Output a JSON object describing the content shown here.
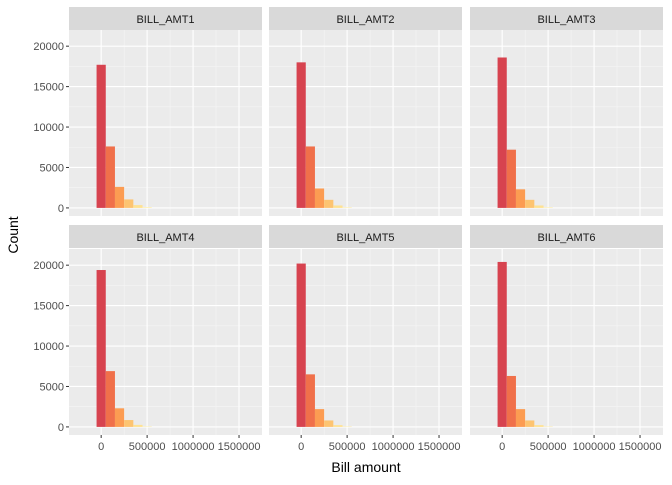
{
  "chart_data": {
    "type": "bar",
    "xlabel": "Bill amount",
    "ylabel": "Count",
    "xlim": [
      -350000,
      1750000
    ],
    "ylim": [
      -1000,
      22000
    ],
    "x_ticks": [
      0,
      500000,
      1000000,
      1500000
    ],
    "x_tick_labels": [
      "0",
      "500000",
      "1000000",
      "1500000"
    ],
    "y_ticks": [
      0,
      5000,
      10000,
      15000,
      20000
    ],
    "y_tick_labels": [
      "0",
      "5000",
      "10000",
      "15000",
      "20000"
    ],
    "bin_width": 100000,
    "bin_centers": [
      0,
      100000,
      200000,
      300000,
      400000,
      500000
    ],
    "bin_colors": [
      "#d7434f",
      "#f0704a",
      "#fc9c52",
      "#fdc471",
      "#fee293",
      "#fff1b4"
    ],
    "panels": [
      {
        "title": "BILL_AMT1",
        "values": [
          17700,
          7600,
          2600,
          1050,
          350,
          100
        ]
      },
      {
        "title": "BILL_AMT2",
        "values": [
          18000,
          7600,
          2400,
          1000,
          300,
          80
        ]
      },
      {
        "title": "BILL_AMT3",
        "values": [
          18600,
          7200,
          2300,
          1000,
          300,
          80
        ]
      },
      {
        "title": "BILL_AMT4",
        "values": [
          19400,
          6900,
          2300,
          850,
          250,
          60
        ]
      },
      {
        "title": "BILL_AMT5",
        "values": [
          20200,
          6500,
          2200,
          800,
          220,
          50
        ]
      },
      {
        "title": "BILL_AMT6",
        "values": [
          20400,
          6300,
          2200,
          800,
          220,
          50
        ]
      }
    ]
  }
}
